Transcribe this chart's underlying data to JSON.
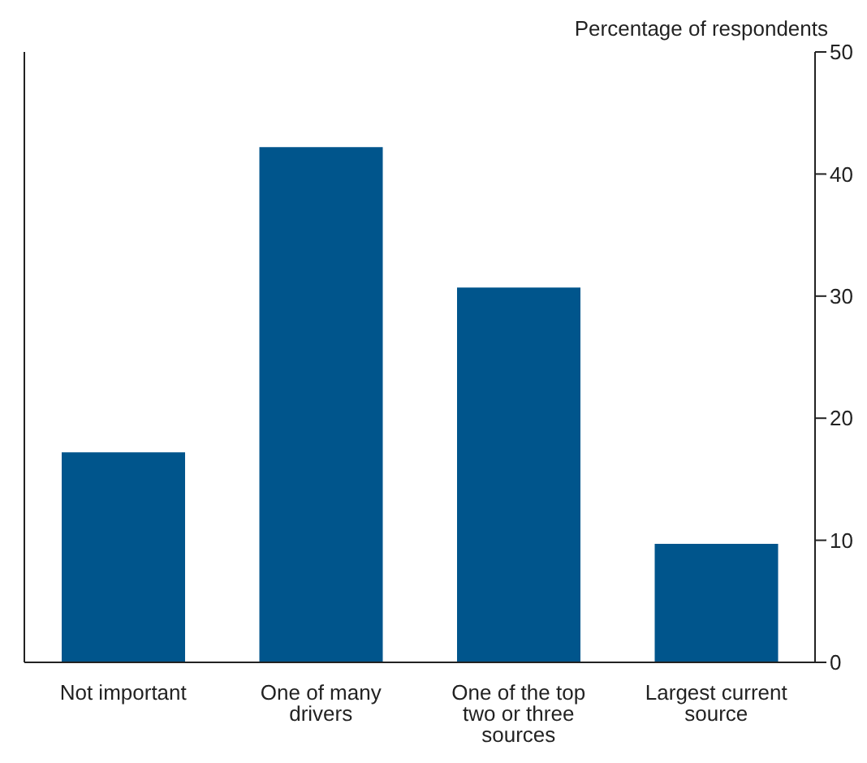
{
  "chart_data": {
    "type": "bar",
    "ylabel": "Percentage of respondents",
    "categories": [
      "Not important",
      "One of many drivers",
      "One of the top two or three sources",
      "Largest current source"
    ],
    "values": [
      17.2,
      42.2,
      30.7,
      9.7
    ],
    "color": "#00558c",
    "ylim": [
      0,
      50
    ],
    "yticks": [
      0,
      10,
      20,
      30,
      40,
      50
    ],
    "grid": false
  }
}
